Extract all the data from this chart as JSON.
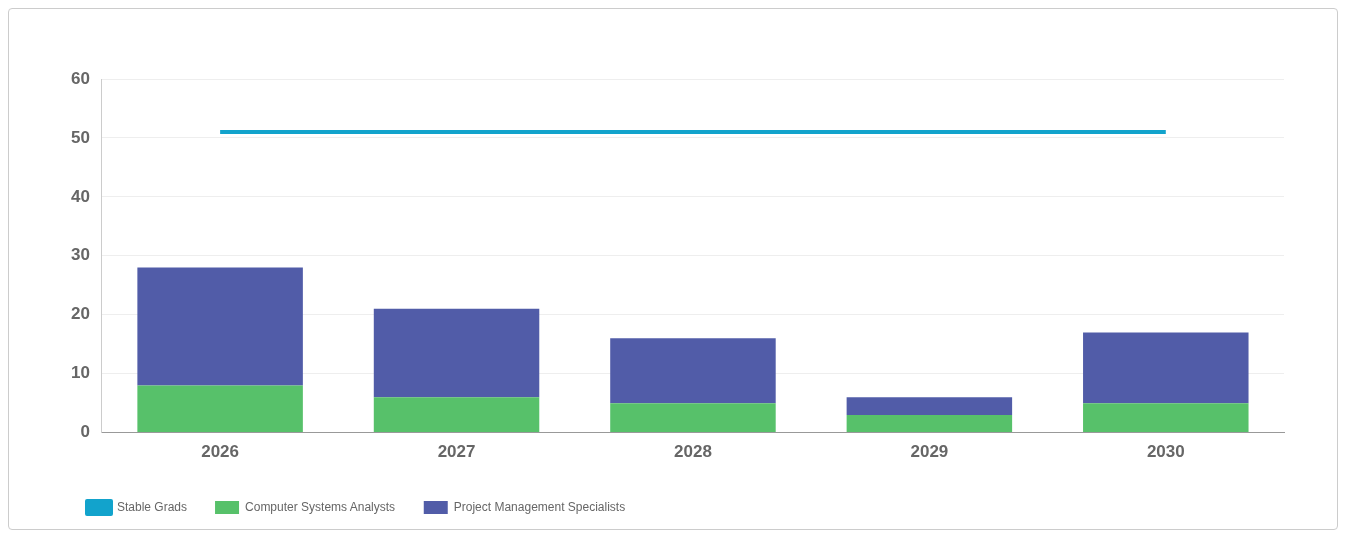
{
  "chart_data": {
    "type": "bar",
    "stacked": true,
    "categories": [
      "2026",
      "2027",
      "2028",
      "2029",
      "2030"
    ],
    "series": [
      {
        "name": "Computer Systems Analysts",
        "color": "#57c16a",
        "values": [
          8,
          6,
          5,
          3,
          5
        ]
      },
      {
        "name": "Project Management Specialists",
        "color": "#515ca8",
        "values": [
          20,
          15,
          11,
          3,
          12
        ]
      },
      {
        "name": "Stable Grads",
        "color": "#12a3cc",
        "type": "line",
        "values": [
          51,
          51,
          51,
          51,
          51
        ]
      }
    ],
    "ylim": [
      0,
      60
    ],
    "yticks": [
      0,
      10,
      20,
      30,
      40,
      50,
      60
    ],
    "grid": "y",
    "legend": "bottom left",
    "marker": "none",
    "line_style": "solid"
  }
}
